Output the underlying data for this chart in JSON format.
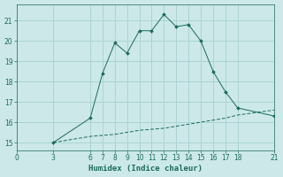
{
  "title": "",
  "xlabel": "Humidex (Indice chaleur)",
  "bg_color": "#cce8e8",
  "grid_color": "#aad4d4",
  "line_color": "#1a6b5a",
  "line1_x": [
    3,
    6,
    7,
    8,
    9,
    10,
    11,
    12,
    13,
    14,
    15,
    16,
    17,
    18,
    21
  ],
  "line1_y": [
    15.0,
    16.2,
    18.4,
    19.9,
    19.4,
    20.5,
    20.5,
    21.3,
    20.7,
    20.8,
    20.0,
    18.5,
    17.5,
    16.7,
    16.3
  ],
  "line2_x": [
    3,
    6,
    7,
    8,
    9,
    10,
    11,
    12,
    13,
    14,
    15,
    16,
    17,
    18,
    21
  ],
  "line2_y": [
    15.0,
    15.3,
    15.35,
    15.4,
    15.5,
    15.6,
    15.65,
    15.7,
    15.8,
    15.9,
    16.0,
    16.1,
    16.2,
    16.35,
    16.6
  ],
  "xlim": [
    0,
    21
  ],
  "ylim": [
    14.6,
    21.8
  ],
  "xticks": [
    0,
    3,
    6,
    7,
    8,
    9,
    10,
    11,
    12,
    13,
    14,
    15,
    16,
    17,
    18,
    21
  ],
  "yticks": [
    15,
    16,
    17,
    18,
    19,
    20,
    21
  ],
  "tick_fontsize": 5.5,
  "label_fontsize": 6.5
}
